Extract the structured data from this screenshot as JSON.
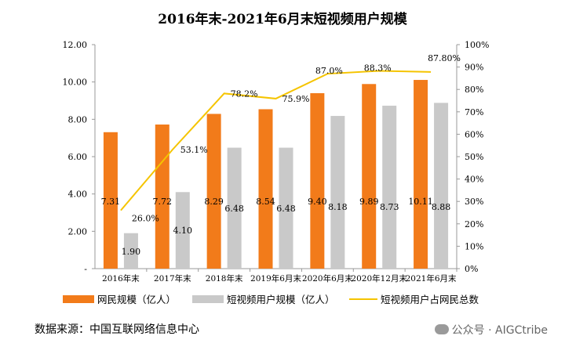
{
  "chart_data": {
    "type": "bar",
    "title": "2016年末-2021年6月末短视频用户规模",
    "categories": [
      "2016年末",
      "2017年末",
      "2018年末",
      "2019年6月末",
      "2020年6月末",
      "2020年12月末",
      "2021年6月末"
    ],
    "series": [
      {
        "name": "网民规模（亿人）",
        "type": "bar",
        "axis": "left",
        "color": "#f27b1a",
        "values": [
          7.31,
          7.72,
          8.29,
          8.54,
          9.4,
          9.89,
          10.11
        ],
        "labels": [
          "7.31",
          "7.72",
          "8.29",
          "8.54",
          "9.40",
          "9.89",
          "10.11"
        ]
      },
      {
        "name": "短视频用户规模（亿人）",
        "type": "bar",
        "axis": "left",
        "color": "#c9c9c9",
        "values": [
          1.9,
          4.1,
          6.48,
          6.48,
          8.18,
          8.73,
          8.88
        ],
        "labels": [
          "1.90",
          "4.10",
          "6.48",
          "6.48",
          "8.18",
          "8.73",
          "8.88"
        ]
      },
      {
        "name": "短视频用户占网民总数",
        "type": "line",
        "axis": "right",
        "color": "#f5c400",
        "values": [
          26.0,
          53.1,
          78.2,
          75.9,
          87.0,
          88.3,
          87.8
        ],
        "labels": [
          "26.0%",
          "53.1%",
          "78.2%",
          "75.9%",
          "87.0%",
          "88.3%",
          "87.80%"
        ]
      }
    ],
    "ylim": [
      0,
      12
    ],
    "y_ticks": [
      "-",
      "2.00",
      "4.00",
      "6.00",
      "8.00",
      "10.00",
      "12.00"
    ],
    "y2lim": [
      0,
      100
    ],
    "y2_ticks": [
      "0%",
      "10%",
      "20%",
      "30%",
      "40%",
      "50%",
      "60%",
      "70%",
      "80%",
      "90%",
      "100%"
    ],
    "grid": false,
    "legend_position": "bottom"
  },
  "source_text": "数据来源：中国互联网络信息中心",
  "watermark": "公众号 · AIGCtribe"
}
